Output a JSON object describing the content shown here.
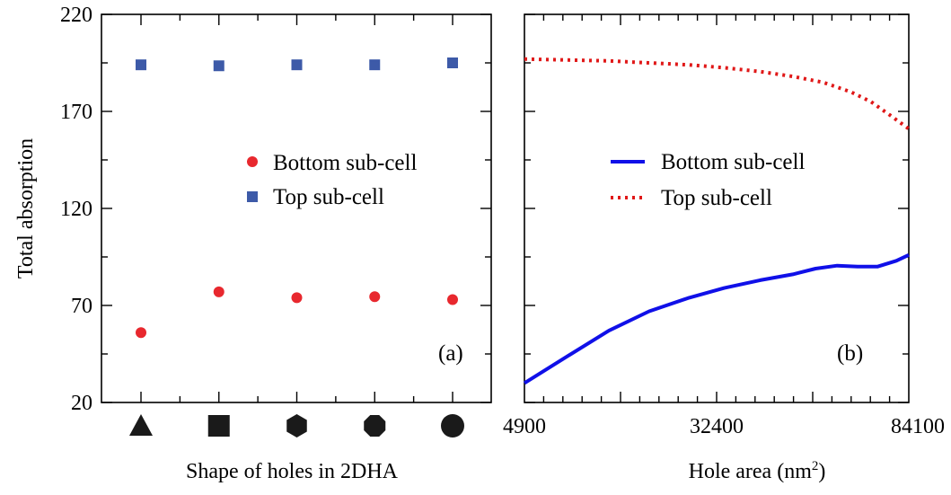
{
  "colors": {
    "bottom": "#e8282e",
    "top": "#3d5aa8",
    "line_bottom": "#1010e8",
    "line_top": "#e01818"
  },
  "ylabel": "Total absorption",
  "chart_data": [
    {
      "panel_label": "(a)",
      "type": "scatter",
      "xlabel": "Shape of holes in 2DHA",
      "categories": [
        "triangle",
        "square",
        "hexagon",
        "octagon",
        "circle"
      ],
      "category_icons": [
        "triangle-icon",
        "square-icon",
        "hexagon-icon",
        "octagon-icon",
        "circle-icon"
      ],
      "ylim": [
        20,
        220
      ],
      "yticks": [
        20,
        70,
        120,
        170,
        220
      ],
      "legend_position": "right-middle",
      "series": [
        {
          "name": "Bottom sub-cell",
          "marker": "circle",
          "values": [
            56,
            77,
            74,
            74.5,
            73
          ]
        },
        {
          "name": "Top sub-cell",
          "marker": "square",
          "values": [
            194,
            193.5,
            194,
            194,
            195
          ]
        }
      ]
    },
    {
      "panel_label": "(b)",
      "type": "line",
      "xlabel": "Hole area (nm",
      "xlabel_sup": "2",
      "xlabel_close": ")",
      "xlim": [
        4900,
        84100
      ],
      "xticks": [
        4900,
        32400,
        84100
      ],
      "x_scale": "sqrt",
      "ylim": [
        20,
        220
      ],
      "legend_position": "right-middle",
      "series": [
        {
          "name": "Bottom sub-cell",
          "style": "solid",
          "x": [
            4900,
            9000,
            14000,
            20000,
            27000,
            34000,
            42000,
            50000,
            56000,
            62000,
            68000,
            74000,
            80000,
            84100
          ],
          "y": [
            30,
            44,
            57,
            67,
            74,
            79,
            83,
            86,
            89,
            90.5,
            90,
            90,
            93,
            96
          ]
        },
        {
          "name": "Top sub-cell",
          "style": "dotted",
          "x": [
            4900,
            9000,
            14000,
            20000,
            27000,
            34000,
            42000,
            50000,
            58000,
            66000,
            72000,
            78000,
            84100
          ],
          "y": [
            197,
            196.5,
            196,
            195,
            194,
            192.5,
            190.5,
            188,
            185,
            180,
            175,
            168,
            161
          ]
        }
      ]
    }
  ]
}
